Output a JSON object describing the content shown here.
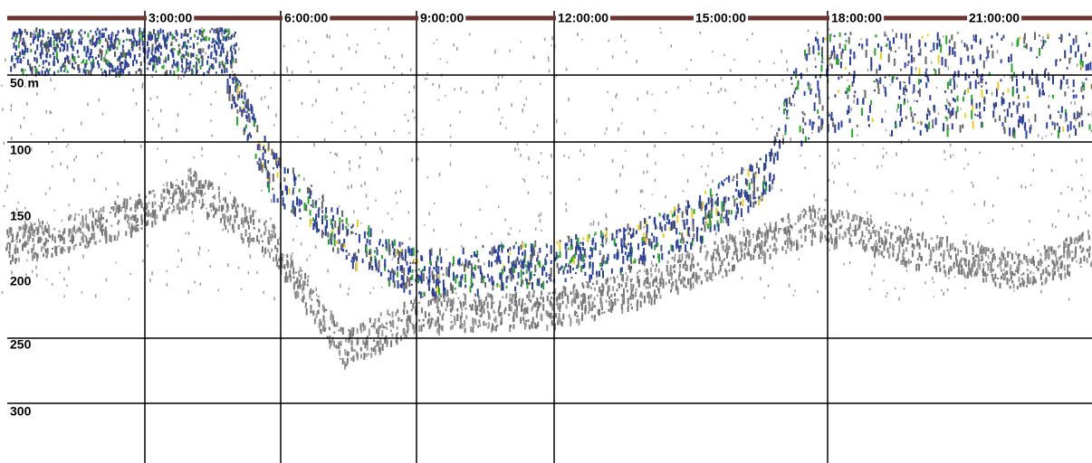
{
  "time_labels": [
    "3:00:00",
    "6:00:00",
    "9:00:00",
    "12:00:00",
    "15:00:00",
    "18:00:00",
    "21:00:00"
  ],
  "depth_labels": [
    "50 m",
    "100",
    "150",
    "200",
    "250",
    "300"
  ]
}
